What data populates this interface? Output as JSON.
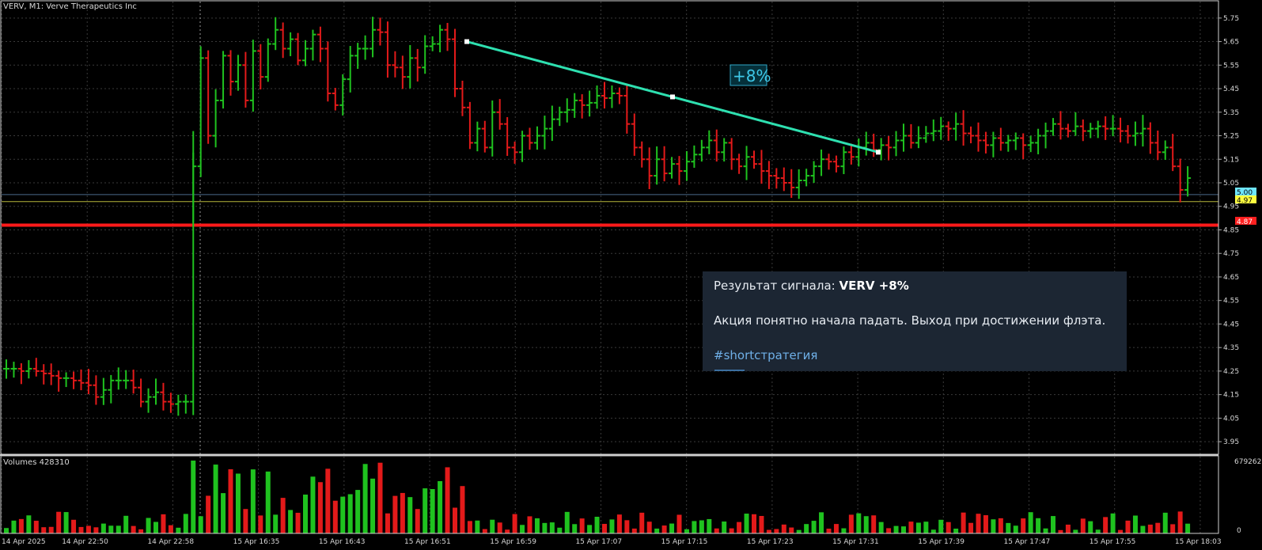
{
  "window": {
    "title": "VERV, M1:  Verve Therapeutics Inc",
    "volume_label": "Volumes 428310",
    "volume_max_label": "679262",
    "volume_zero_label": "0"
  },
  "colors": {
    "background": "#000000",
    "grid": "#3a3a3a",
    "bull": "#1fc21f",
    "bear": "#e31a1a",
    "trendline": "#2ee0b0",
    "support_line": "#ff1a1a",
    "bid_line": "#4a6a8a",
    "ask_line": "#b5b53a"
  },
  "annotation": {
    "label": "+8%"
  },
  "price_tags": [
    {
      "value": "5.00",
      "color": "#6ee6ff"
    },
    {
      "value": "4.97",
      "color": "#ffff40"
    },
    {
      "value": "4.87",
      "color": "#ff2020"
    }
  ],
  "signal_message": {
    "title_prefix": "Результат сигнала: ",
    "title_bold": "VERV +8%",
    "body": "Акция понятно начала падать. Выход при достижении флэта.",
    "hashtag": "#shortстратегия"
  },
  "chart_data": {
    "type": "ohlc",
    "symbol": "VERV",
    "timeframe": "M1",
    "ylim": [
      3.9,
      5.82
    ],
    "y_ticks": [
      "5.75",
      "5.65",
      "5.55",
      "5.45",
      "5.35",
      "5.25",
      "5.15",
      "5.05",
      "4.95",
      "4.85",
      "4.75",
      "4.65",
      "4.55",
      "4.45",
      "4.35",
      "4.25",
      "4.15",
      "4.05",
      "3.95"
    ],
    "x_tick_labels": [
      "14 Apr 2025",
      "14 Apr 22:50",
      "14 Apr 22:58",
      "15 Apr 16:35",
      "15 Apr 16:43",
      "15 Apr 16:51",
      "15 Apr 16:59",
      "15 Apr 17:07",
      "15 Apr 17:15",
      "15 Apr 17:23",
      "15 Apr 17:31",
      "15 Apr 17:39",
      "15 Apr 17:47",
      "15 Apr 17:55",
      "15 Apr 18:03"
    ],
    "bars_close": [
      4.26,
      4.26,
      4.25,
      4.26,
      4.25,
      4.24,
      4.23,
      4.22,
      4.22,
      4.21,
      4.2,
      4.19,
      4.14,
      4.17,
      4.21,
      4.21,
      4.21,
      4.18,
      4.12,
      4.14,
      4.16,
      4.12,
      4.11,
      4.12,
      4.12,
      5.12,
      5.58,
      5.25,
      5.4,
      5.59,
      5.48,
      5.55,
      5.4,
      5.61,
      5.5,
      5.64,
      5.7,
      5.62,
      5.66,
      5.57,
      5.62,
      5.68,
      5.62,
      5.43,
      5.38,
      5.49,
      5.59,
      5.62,
      5.62,
      5.7,
      5.69,
      5.55,
      5.54,
      5.5,
      5.58,
      5.54,
      5.63,
      5.64,
      5.7,
      5.66,
      5.45,
      5.37,
      5.22,
      5.28,
      5.2,
      5.35,
      5.3,
      5.2,
      5.18,
      5.25,
      5.22,
      5.25,
      5.28,
      5.32,
      5.35,
      5.36,
      5.4,
      5.38,
      5.39,
      5.42,
      5.41,
      5.43,
      5.42,
      5.3,
      5.2,
      5.15,
      5.08,
      5.15,
      5.09,
      5.13,
      5.1,
      5.14,
      5.17,
      5.2,
      5.23,
      5.18,
      5.22,
      5.15,
      5.12,
      5.16,
      5.13,
      5.1,
      5.08,
      5.07,
      5.05,
      5.03,
      5.06,
      5.08,
      5.12,
      5.15,
      5.14,
      5.12,
      5.18,
      5.16,
      5.2,
      5.22,
      5.19,
      5.21,
      5.2,
      5.23,
      5.25,
      5.22,
      5.24,
      5.26,
      5.27,
      5.29,
      5.28,
      5.3,
      5.26,
      5.25,
      5.23,
      5.21,
      5.24,
      5.22,
      5.23,
      5.24,
      5.21,
      5.22,
      5.25,
      5.27,
      5.3,
      5.28,
      5.27,
      5.29,
      5.27,
      5.28,
      5.29,
      5.28,
      5.28,
      5.27,
      5.25,
      5.26,
      5.28,
      5.22,
      5.18,
      5.2,
      5.12,
      5.02,
      5.07
    ],
    "trendline": {
      "start": {
        "time": "15 Apr 16:51",
        "price": 5.65
      },
      "end": {
        "time": "15 Apr 17:31",
        "price": 5.18
      }
    },
    "horizontal_lines": [
      5.0,
      4.97,
      4.87
    ],
    "volumes_max": 679262
  }
}
